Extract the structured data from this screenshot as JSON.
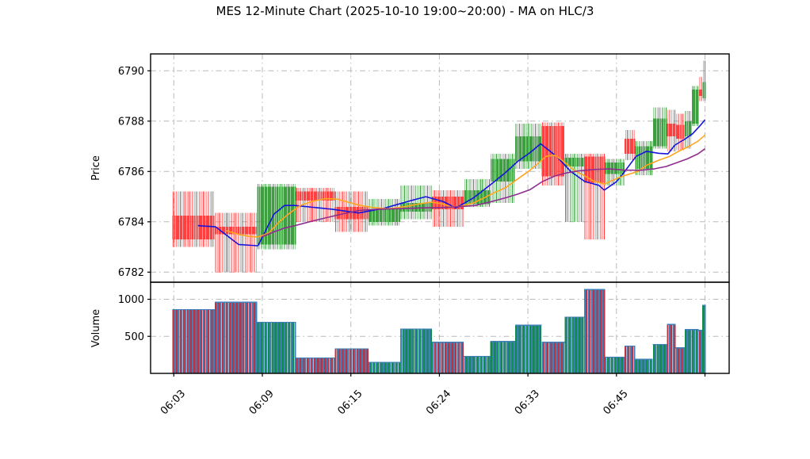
{
  "title": "MES 12-Minute Chart (2025-10-10 19:00~20:00) - MA on HLC/3",
  "price_panel": {
    "ylabel": "Price",
    "ticks": [
      6782,
      6784,
      6786,
      6788,
      6790
    ]
  },
  "volume_panel": {
    "ylabel": "Volume",
    "ticks": [
      500,
      1000
    ]
  },
  "x_axis": {
    "tick_labels": [
      "06:03",
      "06:09",
      "06:15",
      "06:24",
      "06:33",
      "06:45",
      ""
    ]
  },
  "colors": {
    "candle_up": "#3d9f40",
    "candle_down": "#ff4040",
    "volume_up": "#108c44",
    "volume_down": "#c22f3e",
    "volume_alt": "#3f80ba",
    "ma_fast": "#1414dd",
    "ma_mid": "#ffa51e",
    "ma_slow": "#8e2d8e",
    "grid": "#b9b9b9",
    "spine": "#000000"
  },
  "chart_data": {
    "type": "candlestick+volume",
    "title": "MES 12-Minute Chart (2025-10-10 19:00~20:00) - MA on HLC/3",
    "ylabel_price": "Price",
    "ylabel_volume": "Volume",
    "price_axis_ticks": [
      6782,
      6784,
      6786,
      6788,
      6790
    ],
    "volume_axis_ticks": [
      500,
      1000
    ],
    "price_ylim": [
      6781.6,
      6790.7
    ],
    "volume_ylim": [
      0,
      1240
    ],
    "x_tick_labels": [
      "06:03",
      "06:09",
      "06:15",
      "06:24",
      "06:33",
      "06:45",
      ""
    ],
    "grid": "dash-dot",
    "ohlc_groups": [
      {
        "n": 24,
        "o": 6784.25,
        "h": 6785.2,
        "l": 6783.0,
        "c": 6783.3,
        "v": 860
      },
      {
        "n": 24,
        "o": 6783.8,
        "h": 6784.35,
        "l": 6782.0,
        "c": 6783.5,
        "v": 960
      },
      {
        "n": 22,
        "o": 6783.1,
        "h": 6785.5,
        "l": 6782.9,
        "c": 6785.4,
        "v": 690
      },
      {
        "n": 22,
        "o": 6785.2,
        "h": 6785.35,
        "l": 6784.0,
        "c": 6784.85,
        "v": 210
      },
      {
        "n": 19,
        "o": 6784.6,
        "h": 6785.2,
        "l": 6783.6,
        "c": 6784.1,
        "v": 330
      },
      {
        "n": 18,
        "o": 6784.0,
        "h": 6784.9,
        "l": 6783.85,
        "c": 6784.5,
        "v": 150
      },
      {
        "n": 18,
        "o": 6784.4,
        "h": 6785.45,
        "l": 6784.1,
        "c": 6784.75,
        "v": 600
      },
      {
        "n": 18,
        "o": 6785.0,
        "h": 6785.25,
        "l": 6783.8,
        "c": 6784.5,
        "v": 420
      },
      {
        "n": 15,
        "o": 6784.7,
        "h": 6785.7,
        "l": 6784.6,
        "c": 6785.25,
        "v": 230
      },
      {
        "n": 14,
        "o": 6785.6,
        "h": 6786.7,
        "l": 6784.75,
        "c": 6786.5,
        "v": 430
      },
      {
        "n": 15,
        "o": 6786.4,
        "h": 6787.9,
        "l": 6786.1,
        "c": 6787.4,
        "v": 650
      },
      {
        "n": 13,
        "o": 6787.8,
        "h": 6787.95,
        "l": 6785.45,
        "c": 6785.8,
        "v": 420
      },
      {
        "n": 11,
        "o": 6786.2,
        "h": 6786.7,
        "l": 6784.0,
        "c": 6786.55,
        "v": 760
      },
      {
        "n": 12,
        "o": 6786.6,
        "h": 6786.7,
        "l": 6783.3,
        "c": 6785.55,
        "v": 1130
      },
      {
        "n": 11,
        "o": 6785.9,
        "h": 6786.5,
        "l": 6785.45,
        "c": 6786.35,
        "v": 220
      },
      {
        "n": 6,
        "o": 6787.3,
        "h": 6787.65,
        "l": 6786.45,
        "c": 6786.7,
        "v": 370
      },
      {
        "n": 10,
        "o": 6786.1,
        "h": 6787.2,
        "l": 6785.85,
        "c": 6787.0,
        "v": 190
      },
      {
        "n": 8,
        "o": 6787.0,
        "h": 6788.55,
        "l": 6786.9,
        "c": 6788.1,
        "v": 390
      },
      {
        "n": 5,
        "o": 6787.9,
        "h": 6788.45,
        "l": 6786.8,
        "c": 6787.4,
        "v": 660
      },
      {
        "n": 5,
        "o": 6787.85,
        "h": 6788.3,
        "l": 6786.85,
        "c": 6787.3,
        "v": 345
      },
      {
        "n": 4,
        "o": 6787.4,
        "h": 6788.4,
        "l": 6786.9,
        "c": 6788.0,
        "v": 590
      },
      {
        "n": 4,
        "o": 6787.9,
        "h": 6789.4,
        "l": 6787.8,
        "c": 6789.25,
        "v": 590
      },
      {
        "n": 2,
        "o": 6789.25,
        "h": 6789.75,
        "l": 6788.8,
        "c": 6789.0,
        "v": 580
      },
      {
        "n": 2,
        "o": 6788.9,
        "h": 6790.4,
        "l": 6788.8,
        "c": 6789.55,
        "v": 920
      }
    ],
    "ma_lines": [
      {
        "name": "MA-fast",
        "color_key": "ma_fast",
        "points": [
          [
            14,
            6783.85
          ],
          [
            24,
            6783.8
          ],
          [
            37,
            6783.1
          ],
          [
            48,
            6783.05
          ],
          [
            57,
            6784.3
          ],
          [
            63,
            6784.65
          ],
          [
            69,
            6784.65
          ],
          [
            90,
            6784.5
          ],
          [
            105,
            6784.35
          ],
          [
            120,
            6784.55
          ],
          [
            135,
            6784.85
          ],
          [
            143,
            6785.0
          ],
          [
            153,
            6784.8
          ],
          [
            160,
            6784.55
          ],
          [
            170,
            6784.95
          ],
          [
            180,
            6785.5
          ],
          [
            188,
            6785.95
          ],
          [
            195,
            6786.4
          ],
          [
            202,
            6786.75
          ],
          [
            208,
            6787.1
          ],
          [
            217,
            6786.6
          ],
          [
            225,
            6786.0
          ],
          [
            233,
            6785.6
          ],
          [
            241,
            6785.45
          ],
          [
            244,
            6785.26
          ],
          [
            251,
            6785.6
          ],
          [
            255,
            6785.95
          ],
          [
            262,
            6786.6
          ],
          [
            268,
            6786.8
          ],
          [
            275,
            6786.72
          ],
          [
            280,
            6786.7
          ],
          [
            284,
            6787.05
          ],
          [
            290,
            6787.3
          ],
          [
            294,
            6787.5
          ],
          [
            298,
            6787.8
          ],
          [
            301,
            6788.05
          ]
        ]
      },
      {
        "name": "MA-mid",
        "color_key": "ma_mid",
        "points": [
          [
            30,
            6783.65
          ],
          [
            37,
            6783.5
          ],
          [
            43,
            6783.42
          ],
          [
            48,
            6783.4
          ],
          [
            54,
            6783.55
          ],
          [
            60,
            6784.0
          ],
          [
            66,
            6784.35
          ],
          [
            72,
            6784.65
          ],
          [
            79,
            6784.82
          ],
          [
            86,
            6784.92
          ],
          [
            93,
            6784.9
          ],
          [
            99,
            6784.78
          ],
          [
            106,
            6784.65
          ],
          [
            113,
            6784.57
          ],
          [
            122,
            6784.52
          ],
          [
            131,
            6784.6
          ],
          [
            140,
            6784.72
          ],
          [
            146,
            6784.78
          ],
          [
            152,
            6784.72
          ],
          [
            157,
            6784.6
          ],
          [
            162,
            6784.6
          ],
          [
            170,
            6784.75
          ],
          [
            176,
            6784.95
          ],
          [
            180,
            6785.1
          ],
          [
            188,
            6785.35
          ],
          [
            195,
            6785.7
          ],
          [
            202,
            6786.05
          ],
          [
            207,
            6786.35
          ],
          [
            211,
            6786.6
          ],
          [
            216,
            6786.65
          ],
          [
            221,
            6786.4
          ],
          [
            227,
            6786.05
          ],
          [
            233,
            6785.82
          ],
          [
            238,
            6785.62
          ],
          [
            244,
            6785.5
          ],
          [
            251,
            6785.72
          ],
          [
            256,
            6785.85
          ],
          [
            263,
            6786.0
          ],
          [
            268,
            6786.25
          ],
          [
            275,
            6786.45
          ],
          [
            281,
            6786.6
          ],
          [
            286,
            6786.8
          ],
          [
            292,
            6787.0
          ],
          [
            297,
            6787.2
          ],
          [
            301,
            6787.45
          ]
        ]
      },
      {
        "name": "MA-slow",
        "color_key": "ma_slow",
        "points": [
          [
            50,
            6783.4
          ],
          [
            57,
            6783.6
          ],
          [
            63,
            6783.75
          ],
          [
            69,
            6783.85
          ],
          [
            77,
            6784.0
          ],
          [
            86,
            6784.15
          ],
          [
            95,
            6784.3
          ],
          [
            105,
            6784.45
          ],
          [
            115,
            6784.5
          ],
          [
            126,
            6784.52
          ],
          [
            140,
            6784.55
          ],
          [
            153,
            6784.57
          ],
          [
            162,
            6784.6
          ],
          [
            171,
            6784.65
          ],
          [
            180,
            6784.8
          ],
          [
            188,
            6784.95
          ],
          [
            195,
            6785.1
          ],
          [
            202,
            6785.28
          ],
          [
            209,
            6785.6
          ],
          [
            216,
            6785.82
          ],
          [
            223,
            6785.95
          ],
          [
            229,
            6786.02
          ],
          [
            238,
            6786.08
          ],
          [
            247,
            6786.1
          ],
          [
            256,
            6786.05
          ],
          [
            265,
            6786.05
          ],
          [
            272,
            6786.1
          ],
          [
            279,
            6786.2
          ],
          [
            285,
            6786.35
          ],
          [
            291,
            6786.5
          ],
          [
            297,
            6786.7
          ],
          [
            301,
            6786.9
          ]
        ]
      }
    ]
  }
}
